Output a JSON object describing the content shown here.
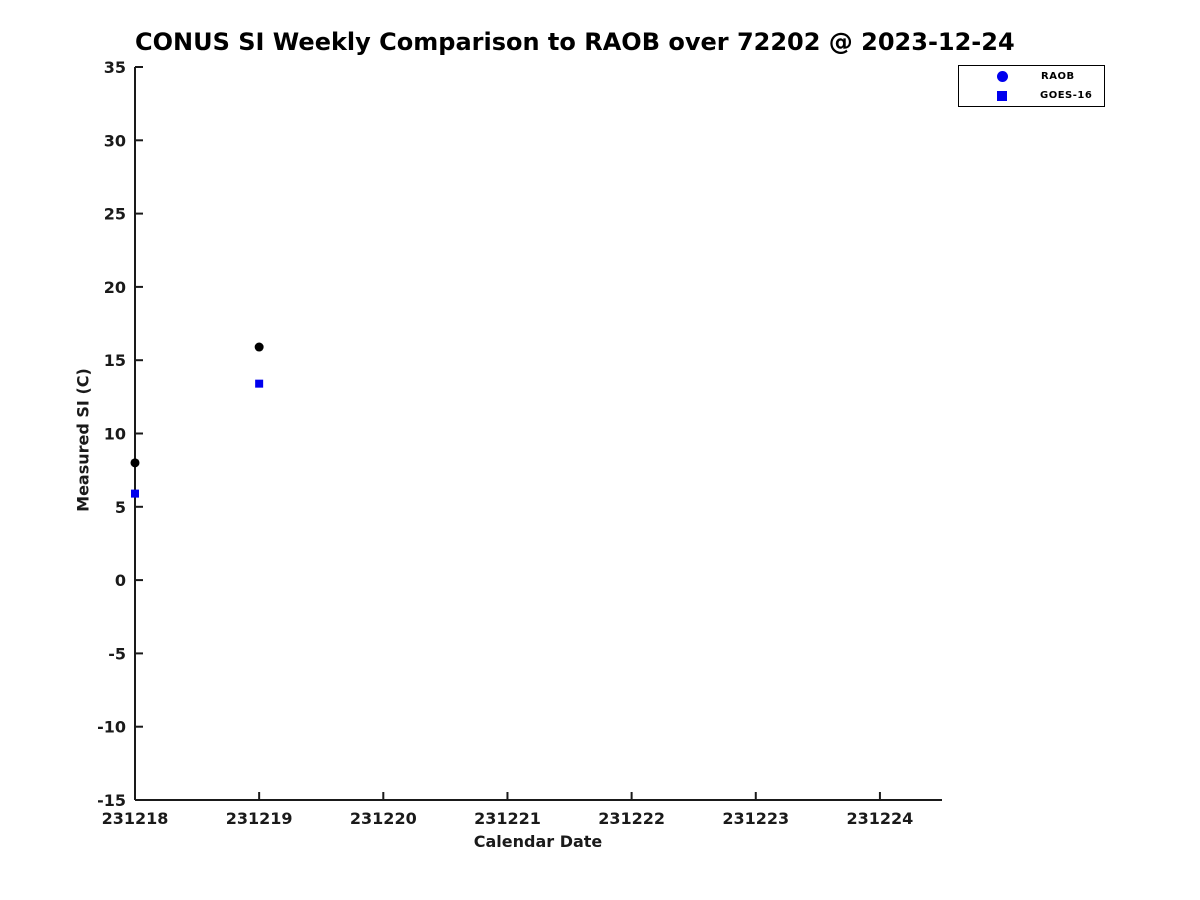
{
  "figure": {
    "background": "#ffffff"
  },
  "chart_data": {
    "type": "scatter",
    "title": "CONUS SI Weekly Comparison to RAOB over 72202 @ 2023-12-24",
    "xlabel": "Calendar Date",
    "ylabel": "Measured SI (C)",
    "xlim": [
      231218,
      231224.5
    ],
    "ylim": [
      -15,
      35
    ],
    "xticks": [
      231218,
      231219,
      231220,
      231221,
      231222,
      231223,
      231224
    ],
    "yticks": [
      35,
      30,
      25,
      20,
      15,
      10,
      5,
      0,
      -5,
      -10,
      -15
    ],
    "grid": false,
    "axis_color": "#1a1a1a",
    "legend": {
      "position": "top-right-outside",
      "entries": [
        "RAOB",
        "GOES-16"
      ]
    },
    "series": [
      {
        "name": "RAOB",
        "marker": "circle",
        "point_color": "#000000",
        "legend_marker_color": "#0000ee",
        "x": [
          231218,
          231219
        ],
        "y": [
          8.0,
          15.9
        ]
      },
      {
        "name": "GOES-16",
        "marker": "square",
        "point_color": "#0000ee",
        "legend_marker_color": "#0000ee",
        "x": [
          231218,
          231219
        ],
        "y": [
          5.9,
          13.4
        ]
      }
    ]
  }
}
